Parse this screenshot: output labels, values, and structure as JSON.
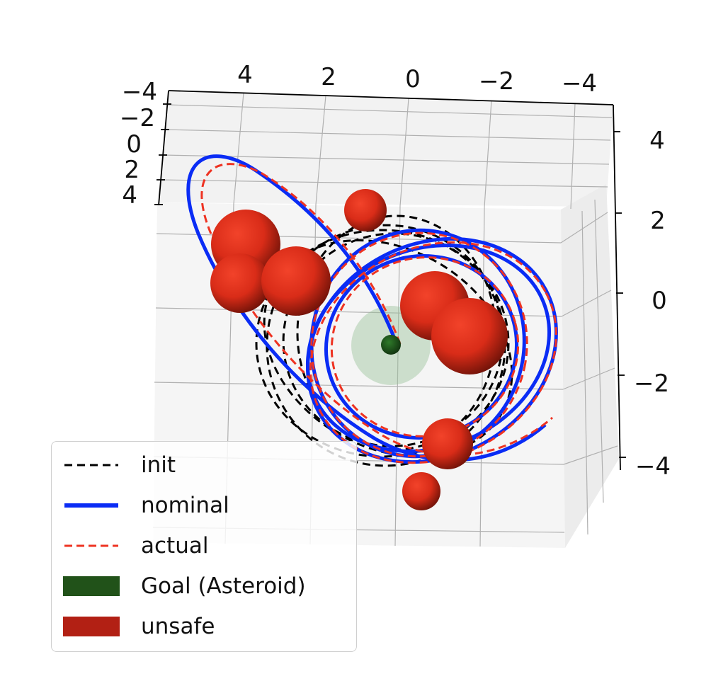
{
  "chart_data": {
    "type": "line",
    "projection": "3d",
    "axes": {
      "x": {
        "ticks": [
          "4",
          "2",
          "0",
          "−2",
          "−4"
        ],
        "range": [
          4.5,
          -4.5
        ]
      },
      "y": {
        "ticks": [
          "−4",
          "−2",
          "0",
          "2",
          "4"
        ],
        "range": [
          -4.5,
          4.5
        ]
      },
      "z": {
        "ticks": [
          "4",
          "2",
          "0",
          "−2",
          "−4"
        ],
        "range": [
          4.5,
          -4.5
        ]
      }
    },
    "grid": true,
    "legend_position": "lower-left",
    "series": [
      {
        "name": "init",
        "style": "dashed",
        "color": "#000000",
        "shape": "spiral loops around goal"
      },
      {
        "name": "nominal",
        "style": "solid",
        "color": "#0a2cf5",
        "shape": "spiral loops around goal"
      },
      {
        "name": "actual",
        "style": "dashed",
        "color": "#ee3322",
        "shape": "spiral loops around goal"
      }
    ],
    "goal": {
      "name": "Goal (Asteroid)",
      "color": "#215219",
      "influence_color": "#9cc49c"
    },
    "unsafe": {
      "name": "unsafe",
      "color": "#b22014",
      "count": 9
    }
  },
  "legend": {
    "entries": [
      {
        "label": "init",
        "kind": "line-dashed",
        "color": "#000000"
      },
      {
        "label": "nominal",
        "kind": "line-solid",
        "color": "#0a2cf5"
      },
      {
        "label": "actual",
        "kind": "line-dashed",
        "color": "#ee3322"
      },
      {
        "label": "Goal (Asteroid)",
        "kind": "patch",
        "color": "#215219"
      },
      {
        "label": "unsafe",
        "kind": "patch",
        "color": "#b22014"
      }
    ]
  }
}
